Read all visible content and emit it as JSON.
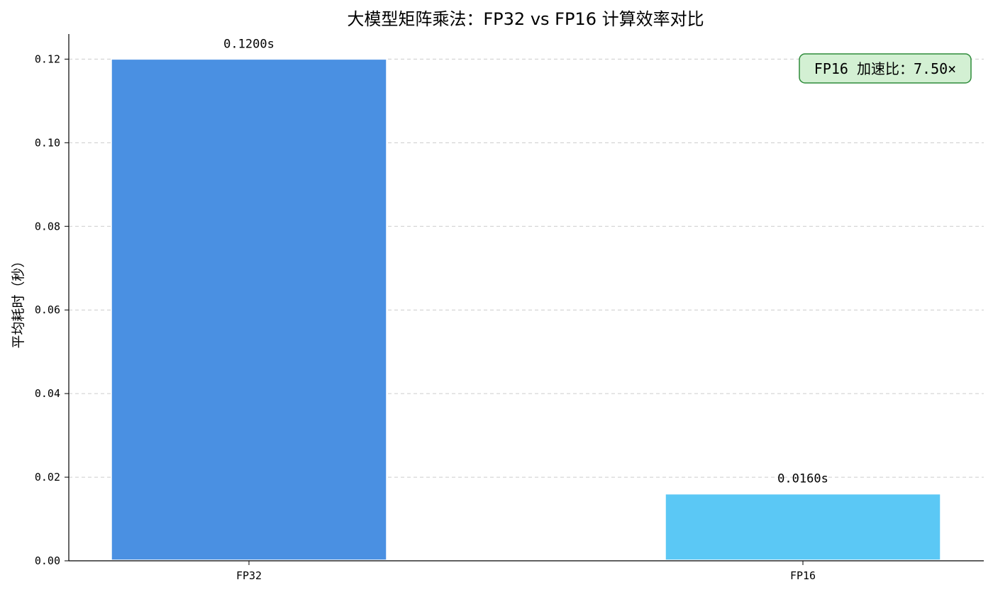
{
  "chart_data": {
    "type": "bar",
    "title": "大模型矩阵乘法：FP32 vs FP16 计算效率对比",
    "xlabel": "",
    "ylabel": "平均耗时（秒）",
    "categories": [
      "FP32",
      "FP16"
    ],
    "values": [
      0.12,
      0.016
    ],
    "data_labels": [
      "0.1200s",
      "0.0160s"
    ],
    "bar_colors": [
      "#4a90e2",
      "#5bc8f5"
    ],
    "ylim": [
      0,
      0.126
    ],
    "yticks": [
      0.0,
      0.02,
      0.04,
      0.06,
      0.08,
      0.1,
      0.12
    ],
    "ytick_labels": [
      "0.00",
      "0.02",
      "0.04",
      "0.06",
      "0.08",
      "0.10",
      "0.12"
    ],
    "grid": "y-dashed",
    "annotation": {
      "text": "FP16 加速比：7.50×",
      "placement": "top-right",
      "fill": "#d3f0d3",
      "border": "#2e8b3a"
    }
  }
}
